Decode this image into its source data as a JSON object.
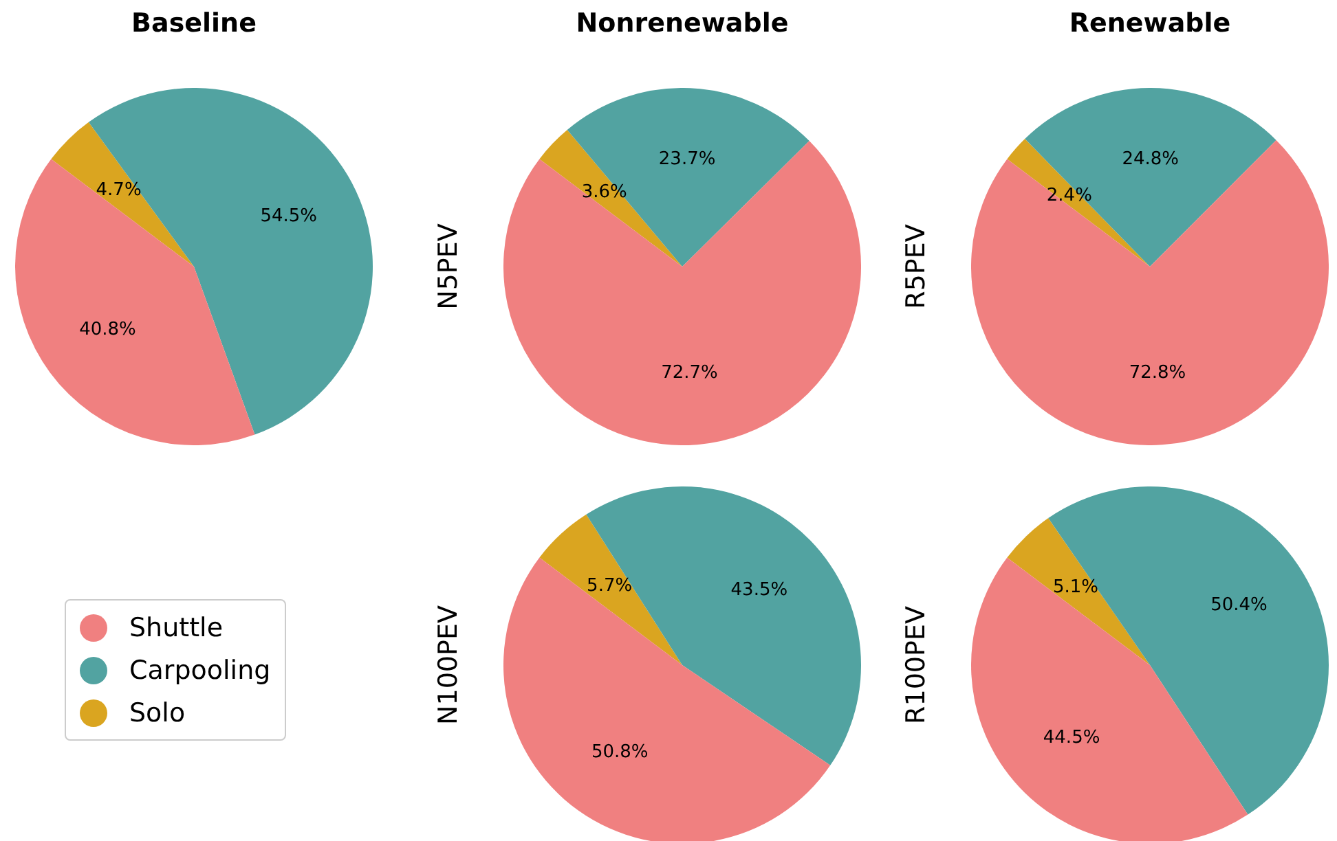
{
  "chart_data": [
    {
      "type": "pie",
      "title": "Baseline",
      "categories": [
        "Shuttle",
        "Carpooling",
        "Solo"
      ],
      "values": [
        40.8,
        54.5,
        4.7
      ],
      "colors": [
        "#f08080",
        "#52a3a1",
        "#daa520"
      ],
      "value_labels": [
        "40.8%",
        "54.5%",
        "4.7%"
      ],
      "legend": "bottom"
    },
    {
      "type": "pie",
      "title": "Nonrenewable",
      "ylabel": "N5PEV",
      "categories": [
        null,
        null,
        null
      ],
      "values": [
        72.7,
        23.7,
        3.6
      ],
      "colors": [
        "#f08080",
        "#52a3a1",
        "#daa520"
      ],
      "value_labels": [
        "72.7%",
        "23.7%",
        "3.6%"
      ]
    },
    {
      "type": "pie",
      "title": "Renewable",
      "ylabel": "R5PEV",
      "categories": [
        null,
        null,
        null
      ],
      "values": [
        72.8,
        24.8,
        2.4
      ],
      "colors": [
        "#f08080",
        "#52a3a1",
        "#daa520"
      ],
      "value_labels": [
        "72.8%",
        "24.8%",
        "2.4%"
      ]
    },
    {
      "type": "pie",
      "ylabel": "N100PEV",
      "categories": [
        null,
        null,
        null
      ],
      "values": [
        50.8,
        43.5,
        5.7
      ],
      "colors": [
        "#f08080",
        "#52a3a1",
        "#daa520"
      ],
      "value_labels": [
        "50.8%",
        "43.5%",
        "5.7%"
      ]
    },
    {
      "type": "pie",
      "ylabel": "R100PEV",
      "categories": [
        null,
        null,
        null
      ],
      "values": [
        44.5,
        50.4,
        5.1
      ],
      "colors": [
        "#f08080",
        "#52a3a1",
        "#daa520"
      ],
      "value_labels": [
        "44.5%",
        "50.4%",
        "5.1%"
      ]
    }
  ]
}
